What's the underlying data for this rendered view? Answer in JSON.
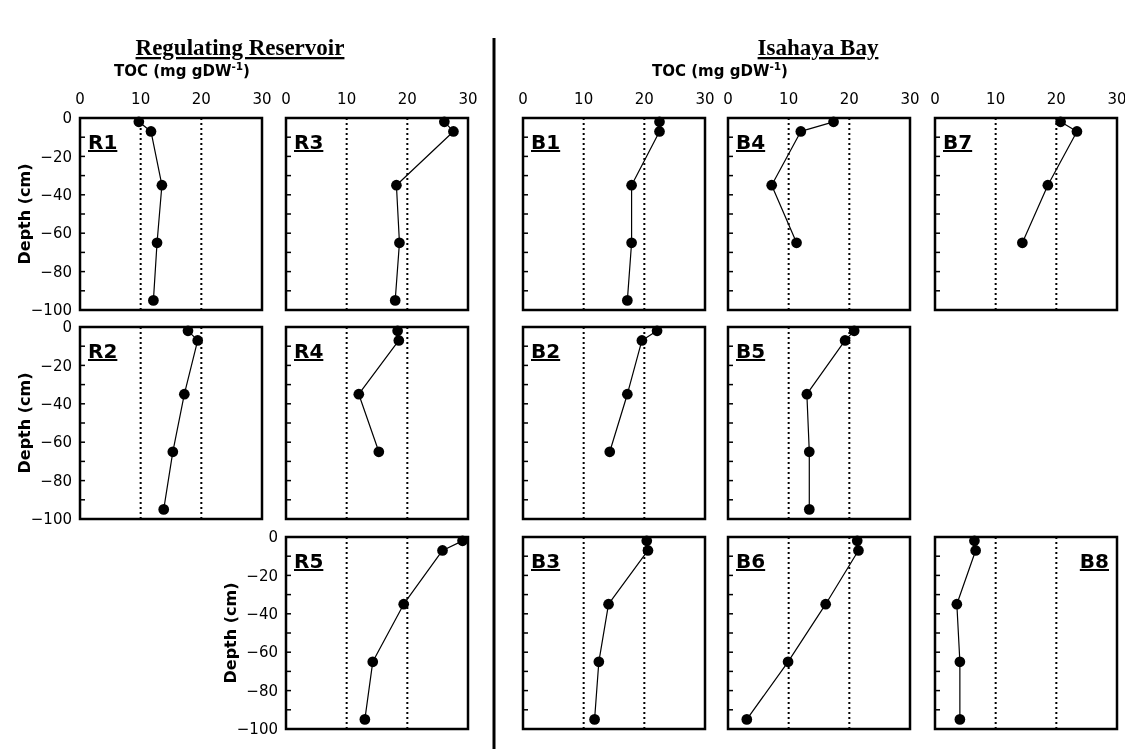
{
  "chart_data": [
    {
      "type": "line",
      "title": "R1",
      "subtitle": "Regulating Reservoir",
      "xlabel": "TOC (mg gDW$^{-1}$)",
      "ylabel": "Depth (cm)",
      "marker": "circle",
      "line_style": "solid",
      "xlim": [
        0,
        30
      ],
      "xticks": [
        0,
        10,
        20,
        30
      ],
      "ylim": [
        -100,
        0
      ],
      "yticks": [
        -100,
        {
          "value": -90,
          "label": null
        },
        -80,
        {
          "value": -70,
          "label": null
        },
        -60,
        {
          "value": -50,
          "label": null
        },
        -40,
        {
          "value": -30,
          "label": null
        },
        -20,
        {
          "value": -10,
          "label": null
        },
        0
      ],
      "ref_lines": [
        {
          "axis": "x",
          "value": 10,
          "line_style": "dotted"
        },
        {
          "axis": "x",
          "value": 20,
          "line_style": "dotted"
        }
      ],
      "series": [
        {
          "color": "#000000",
          "x": [
            9.7,
            11.7,
            13.5,
            12.7,
            12.1
          ],
          "values": [
            -2,
            -7,
            -35,
            -65,
            -95
          ]
        }
      ]
    },
    {
      "type": "line",
      "title": "R3",
      "marker": "circle",
      "line_style": "solid",
      "xlim": [
        0,
        30
      ],
      "xticks": [
        0,
        10,
        20,
        30
      ],
      "ylim": [
        -100,
        0
      ],
      "yticks": [
        -100,
        {
          "value": -90,
          "label": null
        },
        -80,
        {
          "value": -70,
          "label": null
        },
        -60,
        {
          "value": -50,
          "label": null
        },
        -40,
        {
          "value": -30,
          "label": null
        },
        -20,
        {
          "value": -10,
          "label": null
        },
        0
      ],
      "tick_labels": "x",
      "ref_lines": [
        {
          "axis": "x",
          "value": 10,
          "line_style": "dotted"
        },
        {
          "axis": "x",
          "value": 20,
          "line_style": "dotted"
        }
      ],
      "series": [
        {
          "color": "#000000",
          "x": [
            26.1,
            27.6,
            18.2,
            18.7,
            18.0
          ],
          "values": [
            -2,
            -7,
            -35,
            -65,
            -95
          ]
        }
      ]
    },
    {
      "type": "line",
      "title": "B1",
      "xlabel": "TOC (mg gDW$^{-1}$)",
      "marker": "circle",
      "line_style": "solid",
      "xlim": [
        0,
        30
      ],
      "xticks": [
        0,
        10,
        20,
        30
      ],
      "ylim": [
        -100,
        0
      ],
      "yticks": [
        -100,
        {
          "value": -90,
          "label": null
        },
        -80,
        {
          "value": -70,
          "label": null
        },
        -60,
        {
          "value": -50,
          "label": null
        },
        -40,
        {
          "value": -30,
          "label": null
        },
        -20,
        {
          "value": -10,
          "label": null
        },
        0
      ],
      "tick_labels": "x",
      "ref_lines": [
        {
          "axis": "x",
          "value": 10,
          "line_style": "dotted"
        },
        {
          "axis": "x",
          "value": 20,
          "line_style": "dotted"
        }
      ],
      "series": [
        {
          "color": "#000000",
          "x": [
            22.5,
            22.5,
            17.9,
            17.9,
            17.2
          ],
          "values": [
            -2,
            -7,
            -35,
            -65,
            -95
          ]
        }
      ]
    },
    {
      "type": "line",
      "title": "B4",
      "subtitle": "Isahaya Bay",
      "marker": "circle",
      "line_style": "solid",
      "xlim": [
        0,
        30
      ],
      "xticks": [
        0,
        10,
        20,
        30
      ],
      "ylim": [
        -100,
        0
      ],
      "yticks": [
        -100,
        {
          "value": -90,
          "label": null
        },
        -80,
        {
          "value": -70,
          "label": null
        },
        -60,
        {
          "value": -50,
          "label": null
        },
        -40,
        {
          "value": -30,
          "label": null
        },
        -20,
        {
          "value": -10,
          "label": null
        },
        0
      ],
      "tick_labels": "x",
      "ref_lines": [
        {
          "axis": "x",
          "value": 10,
          "line_style": "dotted"
        },
        {
          "axis": "x",
          "value": 20,
          "line_style": "dotted"
        }
      ],
      "series": [
        {
          "color": "#000000",
          "x": [
            17.4,
            12.0,
            7.2,
            11.3
          ],
          "values": [
            -2,
            -7,
            -35,
            -65
          ]
        }
      ]
    },
    {
      "type": "line",
      "title": "B7",
      "marker": "circle",
      "line_style": "solid",
      "xlim": [
        0,
        30
      ],
      "xticks": [
        0,
        10,
        20,
        30
      ],
      "ylim": [
        -100,
        0
      ],
      "yticks": [
        -100,
        {
          "value": -90,
          "label": null
        },
        -80,
        {
          "value": -70,
          "label": null
        },
        -60,
        {
          "value": -50,
          "label": null
        },
        -40,
        {
          "value": -30,
          "label": null
        },
        -20,
        {
          "value": -10,
          "label": null
        },
        0
      ],
      "tick_labels": "x",
      "ref_lines": [
        {
          "axis": "x",
          "value": 10,
          "line_style": "dotted"
        },
        {
          "axis": "x",
          "value": 20,
          "line_style": "dotted"
        }
      ],
      "series": [
        {
          "color": "#000000",
          "x": [
            20.7,
            23.4,
            18.6,
            14.4
          ],
          "values": [
            -2,
            -7,
            -35,
            -65
          ]
        }
      ]
    },
    {
      "type": "line",
      "title": "R2",
      "ylabel": "Depth (cm)",
      "marker": "circle",
      "line_style": "solid",
      "xlim": [
        0,
        30
      ],
      "ylim": [
        -100,
        0
      ],
      "yticks": [
        -100,
        {
          "value": -90,
          "label": null
        },
        -80,
        {
          "value": -70,
          "label": null
        },
        -60,
        {
          "value": -50,
          "label": null
        },
        -40,
        {
          "value": -30,
          "label": null
        },
        -20,
        {
          "value": -10,
          "label": null
        },
        0
      ],
      "tick_labels": "y",
      "ref_lines": [
        {
          "axis": "x",
          "value": 10,
          "line_style": "dotted"
        },
        {
          "axis": "x",
          "value": 20,
          "line_style": "dotted"
        }
      ],
      "series": [
        {
          "color": "#000000",
          "x": [
            17.8,
            19.4,
            17.2,
            15.3,
            13.8
          ],
          "values": [
            -2,
            -7,
            -35,
            -65,
            -95
          ]
        }
      ]
    },
    {
      "type": "line",
      "title": "R4",
      "marker": "circle",
      "line_style": "solid",
      "xlim": [
        0,
        30
      ],
      "ylim": [
        -100,
        0
      ],
      "yticks": [
        -100,
        {
          "value": -90,
          "label": null
        },
        -80,
        {
          "value": -70,
          "label": null
        },
        -60,
        {
          "value": -50,
          "label": null
        },
        -40,
        {
          "value": -30,
          "label": null
        },
        -20,
        {
          "value": -10,
          "label": null
        },
        0
      ],
      "tick_labels": false,
      "ref_lines": [
        {
          "axis": "x",
          "value": 10,
          "line_style": "dotted"
        },
        {
          "axis": "x",
          "value": 20,
          "line_style": "dotted"
        }
      ],
      "series": [
        {
          "color": "#000000",
          "x": [
            18.4,
            18.6,
            12.0,
            15.3
          ],
          "values": [
            -2,
            -7,
            -35,
            -65
          ]
        }
      ]
    },
    {
      "type": "line",
      "title": "B2",
      "marker": "circle",
      "line_style": "solid",
      "xlim": [
        0,
        30
      ],
      "ylim": [
        -100,
        0
      ],
      "yticks": [
        -100,
        {
          "value": -90,
          "label": null
        },
        -80,
        {
          "value": -70,
          "label": null
        },
        -60,
        {
          "value": -50,
          "label": null
        },
        -40,
        {
          "value": -30,
          "label": null
        },
        -20,
        {
          "value": -10,
          "label": null
        },
        0
      ],
      "tick_labels": false,
      "ref_lines": [
        {
          "axis": "x",
          "value": 10,
          "line_style": "dotted"
        },
        {
          "axis": "x",
          "value": 20,
          "line_style": "dotted"
        }
      ],
      "series": [
        {
          "color": "#000000",
          "x": [
            22.1,
            19.6,
            17.2,
            14.3
          ],
          "values": [
            -2,
            -7,
            -35,
            -65
          ]
        }
      ]
    },
    {
      "type": "line",
      "title": "B5",
      "marker": "circle",
      "line_style": "solid",
      "xlim": [
        0,
        30
      ],
      "ylim": [
        -100,
        0
      ],
      "yticks": [
        -100,
        {
          "value": -90,
          "label": null
        },
        -80,
        {
          "value": -70,
          "label": null
        },
        -60,
        {
          "value": -50,
          "label": null
        },
        -40,
        {
          "value": -30,
          "label": null
        },
        -20,
        {
          "value": -10,
          "label": null
        },
        0
      ],
      "tick_labels": false,
      "ref_lines": [
        {
          "axis": "x",
          "value": 10,
          "line_style": "dotted"
        },
        {
          "axis": "x",
          "value": 20,
          "line_style": "dotted"
        }
      ],
      "series": [
        {
          "color": "#000000",
          "x": [
            20.8,
            19.3,
            13.0,
            13.4,
            13.4
          ],
          "values": [
            -2,
            -7,
            -35,
            -65,
            -95
          ]
        }
      ]
    },
    {
      "type": "line",
      "title": "R5",
      "ylabel": "Depth (cm)",
      "marker": "circle",
      "line_style": "solid",
      "xlim": [
        0,
        30
      ],
      "ylim": [
        -100,
        0
      ],
      "yticks": [
        -100,
        {
          "value": -90,
          "label": null
        },
        -80,
        {
          "value": -70,
          "label": null
        },
        -60,
        {
          "value": -50,
          "label": null
        },
        -40,
        {
          "value": -30,
          "label": null
        },
        -20,
        {
          "value": -10,
          "label": null
        },
        0
      ],
      "tick_labels": "y",
      "ref_lines": [
        {
          "axis": "x",
          "value": 10,
          "line_style": "dotted"
        },
        {
          "axis": "x",
          "value": 20,
          "line_style": "dotted"
        }
      ],
      "series": [
        {
          "color": "#000000",
          "x": [
            29.1,
            25.8,
            19.4,
            14.3,
            13.0
          ],
          "values": [
            -2,
            -7,
            -35,
            -65,
            -95
          ]
        }
      ]
    },
    {
      "type": "line",
      "title": "B3",
      "marker": "circle",
      "line_style": "solid",
      "xlim": [
        0,
        30
      ],
      "ylim": [
        -100,
        0
      ],
      "yticks": [
        -100,
        {
          "value": -90,
          "label": null
        },
        -80,
        {
          "value": -70,
          "label": null
        },
        -60,
        {
          "value": -50,
          "label": null
        },
        -40,
        {
          "value": -30,
          "label": null
        },
        -20,
        {
          "value": -10,
          "label": null
        },
        0
      ],
      "tick_labels": false,
      "ref_lines": [
        {
          "axis": "x",
          "value": 10,
          "line_style": "dotted"
        },
        {
          "axis": "x",
          "value": 20,
          "line_style": "dotted"
        }
      ],
      "series": [
        {
          "color": "#000000",
          "x": [
            20.4,
            20.6,
            14.1,
            12.5,
            11.8
          ],
          "values": [
            -2,
            -7,
            -35,
            -65,
            -95
          ]
        }
      ]
    },
    {
      "type": "line",
      "title": "B6",
      "marker": "circle",
      "line_style": "solid",
      "xlim": [
        0,
        30
      ],
      "ylim": [
        -100,
        0
      ],
      "yticks": [
        -100,
        {
          "value": -90,
          "label": null
        },
        -80,
        {
          "value": -70,
          "label": null
        },
        -60,
        {
          "value": -50,
          "label": null
        },
        -40,
        {
          "value": -30,
          "label": null
        },
        -20,
        {
          "value": -10,
          "label": null
        },
        0
      ],
      "tick_labels": false,
      "ref_lines": [
        {
          "axis": "x",
          "value": 10,
          "line_style": "dotted"
        },
        {
          "axis": "x",
          "value": 20,
          "line_style": "dotted"
        }
      ],
      "series": [
        {
          "color": "#000000",
          "x": [
            21.3,
            21.5,
            16.1,
            9.9,
            3.1
          ],
          "values": [
            -2,
            -7,
            -35,
            -65,
            -95
          ]
        }
      ]
    },
    {
      "type": "line",
      "title": "B8",
      "marker": "circle",
      "line_style": "solid",
      "xlim": [
        0,
        30
      ],
      "ylim": [
        -100,
        0
      ],
      "yticks": [
        -100,
        {
          "value": -90,
          "label": null
        },
        -80,
        {
          "value": -70,
          "label": null
        },
        -60,
        {
          "value": -50,
          "label": null
        },
        -40,
        {
          "value": -30,
          "label": null
        },
        -20,
        {
          "value": -10,
          "label": null
        },
        0
      ],
      "tick_labels": false,
      "ref_lines": [
        {
          "axis": "x",
          "value": 10,
          "line_style": "dotted"
        },
        {
          "axis": "x",
          "value": 20,
          "line_style": "dotted"
        }
      ],
      "series": [
        {
          "color": "#000000",
          "x": [
            6.5,
            6.7,
            3.6,
            4.1,
            4.1
          ],
          "values": [
            -2,
            -7,
            -35,
            -65,
            -95
          ]
        }
      ]
    }
  ]
}
